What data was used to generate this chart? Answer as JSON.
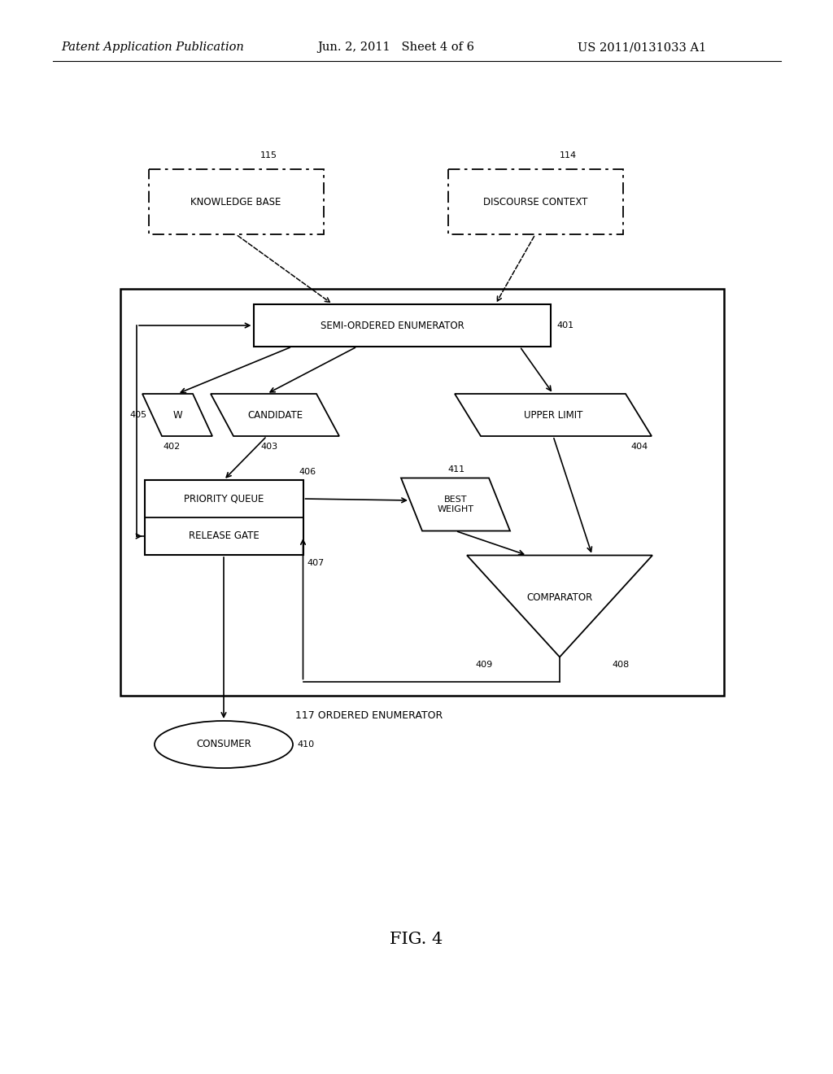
{
  "bg_color": "#ffffff",
  "header_left": "Patent Application Publication",
  "header_mid": "Jun. 2, 2011   Sheet 4 of 6",
  "header_right": "US 2011/0131033 A1",
  "caption": "FIG. 4",
  "font_size_header": 10.5,
  "font_size_node": 8.5,
  "font_size_ref": 8,
  "font_size_caption": 15
}
